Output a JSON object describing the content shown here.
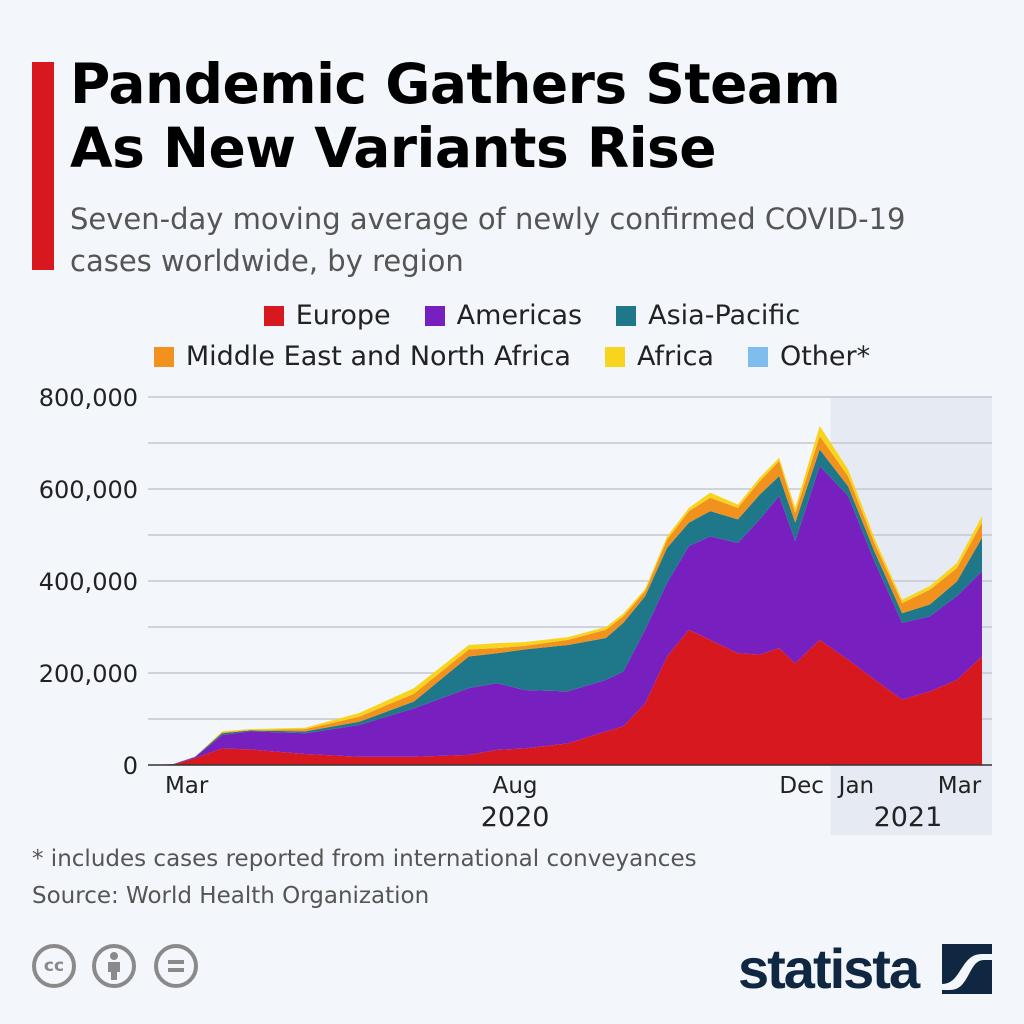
{
  "header": {
    "title_line1": "Pandemic Gathers Steam",
    "title_line2": "As New Variants Rise",
    "subtitle": "Seven-day moving average of newly confirmed COVID-19 cases worldwide, by region"
  },
  "footer": {
    "note": "* includes cases reported from international conveyances",
    "source": "Source: World Health Organization",
    "brand": "statista",
    "license_icons": [
      "cc-icon",
      "attribution-icon",
      "no-derivatives-icon"
    ]
  },
  "colors": {
    "accent": "#d7191f",
    "shade": "#e6ebf3",
    "grid": "#c4c8cf"
  },
  "chart_data": {
    "type": "area",
    "stacked": true,
    "title": "Pandemic Gathers Steam As New Variants Rise",
    "xlabel": "",
    "ylabel": "",
    "x_unit": "months since Jan 1 2020",
    "x": [
      1.4,
      1.79,
      2.13,
      2.55,
      2.98,
      3.84,
      4.68,
      5.53,
      6.38,
      6.82,
      7.24,
      7.92,
      8.51,
      8.78,
      9.12,
      9.46,
      9.8,
      10.13,
      10.56,
      10.9,
      11.2,
      11.45,
      11.83,
      12.27,
      12.69,
      13.11,
      13.54,
      13.96,
      14.35
    ],
    "xlim": [
      1.4,
      14.35
    ],
    "ylim": [
      0,
      800000
    ],
    "yticks": [
      0,
      200000,
      400000,
      600000,
      800000
    ],
    "ytick_labels": [
      "0",
      "200,000",
      "400,000",
      "600,000",
      "800,000"
    ],
    "grid": true,
    "grid_step": 100000,
    "xticks": [
      {
        "value": 2.0,
        "label": "Mar"
      },
      {
        "value": 7.1,
        "label": "Aug"
      },
      {
        "value": 11.55,
        "label": "Dec"
      },
      {
        "value": 12.4,
        "label": "Jan"
      },
      {
        "value": 14.0,
        "label": "Mar"
      }
    ],
    "year_labels": [
      {
        "value": 7.1,
        "label": "2020"
      },
      {
        "value": 13.2,
        "label": "2021"
      }
    ],
    "shaded_range": [
      12.0,
      14.5
    ],
    "legend_position": "top-center",
    "series": [
      {
        "name": "Europe",
        "color": "#d7191f",
        "values": [
          0,
          1000,
          15000,
          36000,
          34000,
          24000,
          18000,
          18000,
          22000,
          33000,
          36000,
          47000,
          73000,
          84000,
          134000,
          236000,
          294000,
          272000,
          243000,
          240000,
          254000,
          221000,
          272000,
          229000,
          185000,
          142000,
          160000,
          185000,
          236000
        ]
      },
      {
        "name": "Americas",
        "color": "#771fbf",
        "values": [
          0,
          1000,
          2000,
          29000,
          39000,
          45000,
          69000,
          105000,
          145000,
          145000,
          127000,
          113000,
          112000,
          119000,
          160000,
          160000,
          182000,
          225000,
          240000,
          294000,
          331000,
          266000,
          378000,
          356000,
          254000,
          167000,
          163000,
          182000,
          185000
        ]
      },
      {
        "name": "Asia-Pacific",
        "color": "#1f788a",
        "values": [
          0,
          0,
          1000,
          4000,
          2000,
          4000,
          7000,
          15000,
          69000,
          65000,
          88000,
          101000,
          91000,
          106000,
          73000,
          76000,
          51000,
          55000,
          51000,
          54000,
          43000,
          40000,
          36000,
          21000,
          22000,
          21000,
          26000,
          32000,
          73000
        ]
      },
      {
        "name": "Middle East and North Africa",
        "color": "#f2921e",
        "values": [
          0,
          0,
          0,
          2000,
          1000,
          5000,
          11000,
          17000,
          15000,
          11000,
          8000,
          11000,
          18000,
          14000,
          11000,
          18000,
          25000,
          29000,
          25000,
          29000,
          33000,
          21000,
          29000,
          22000,
          18000,
          22000,
          32000,
          29000,
          33000
        ]
      },
      {
        "name": "Africa",
        "color": "#f7d51e",
        "values": [
          0,
          0,
          0,
          2000,
          2000,
          3000,
          8000,
          12000,
          10000,
          11000,
          8000,
          6000,
          6000,
          6000,
          5000,
          7000,
          7000,
          11000,
          7000,
          8000,
          7000,
          11000,
          22000,
          15000,
          11000,
          7000,
          8000,
          11000,
          14000
        ]
      },
      {
        "name": "Other*",
        "color": "#7ebdee",
        "values": [
          0,
          0,
          0,
          0,
          0,
          0,
          0,
          0,
          0,
          0,
          0,
          0,
          0,
          0,
          0,
          0,
          0,
          0,
          0,
          0,
          0,
          0,
          0,
          0,
          0,
          0,
          0,
          0,
          0
        ]
      }
    ]
  }
}
